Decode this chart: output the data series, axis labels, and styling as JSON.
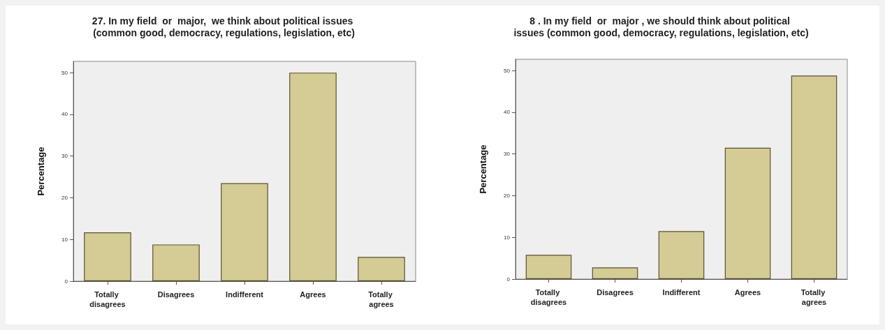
{
  "chart_data": [
    {
      "type": "bar",
      "title": "27. In my field  or  major,  we think about political issues (common good, democracy, regulations, legislation, etc)",
      "ylabel": "Percentage",
      "categories": [
        "Totally disagrees",
        "Disagrees",
        "Indifferent",
        "Agrees",
        "Totally agrees"
      ],
      "values": [
        11.7,
        8.8,
        23.5,
        50,
        5.8
      ],
      "color": "#d4cc94",
      "ylim": [
        0,
        52.7
      ],
      "yticks": [
        0,
        10,
        20,
        30,
        40,
        50
      ],
      "grid": false,
      "legend": false
    },
    {
      "type": "bar",
      "title": "8 . In my field  or  major , we should think about political issues (common good, democracy, regulations, legislation, etc)",
      "ylabel": "Percentage",
      "categories": [
        "Totally disagrees",
        "Disagrees",
        "Indifferent",
        "Agrees",
        "Totally agrees"
      ],
      "values": [
        5.8,
        2.8,
        11.5,
        31.5,
        48.8
      ],
      "color": "#d4cc94",
      "ylim": [
        0,
        52.7
      ],
      "yticks": [
        0,
        10,
        20,
        30,
        40,
        50
      ],
      "grid": false,
      "legend": false
    }
  ]
}
